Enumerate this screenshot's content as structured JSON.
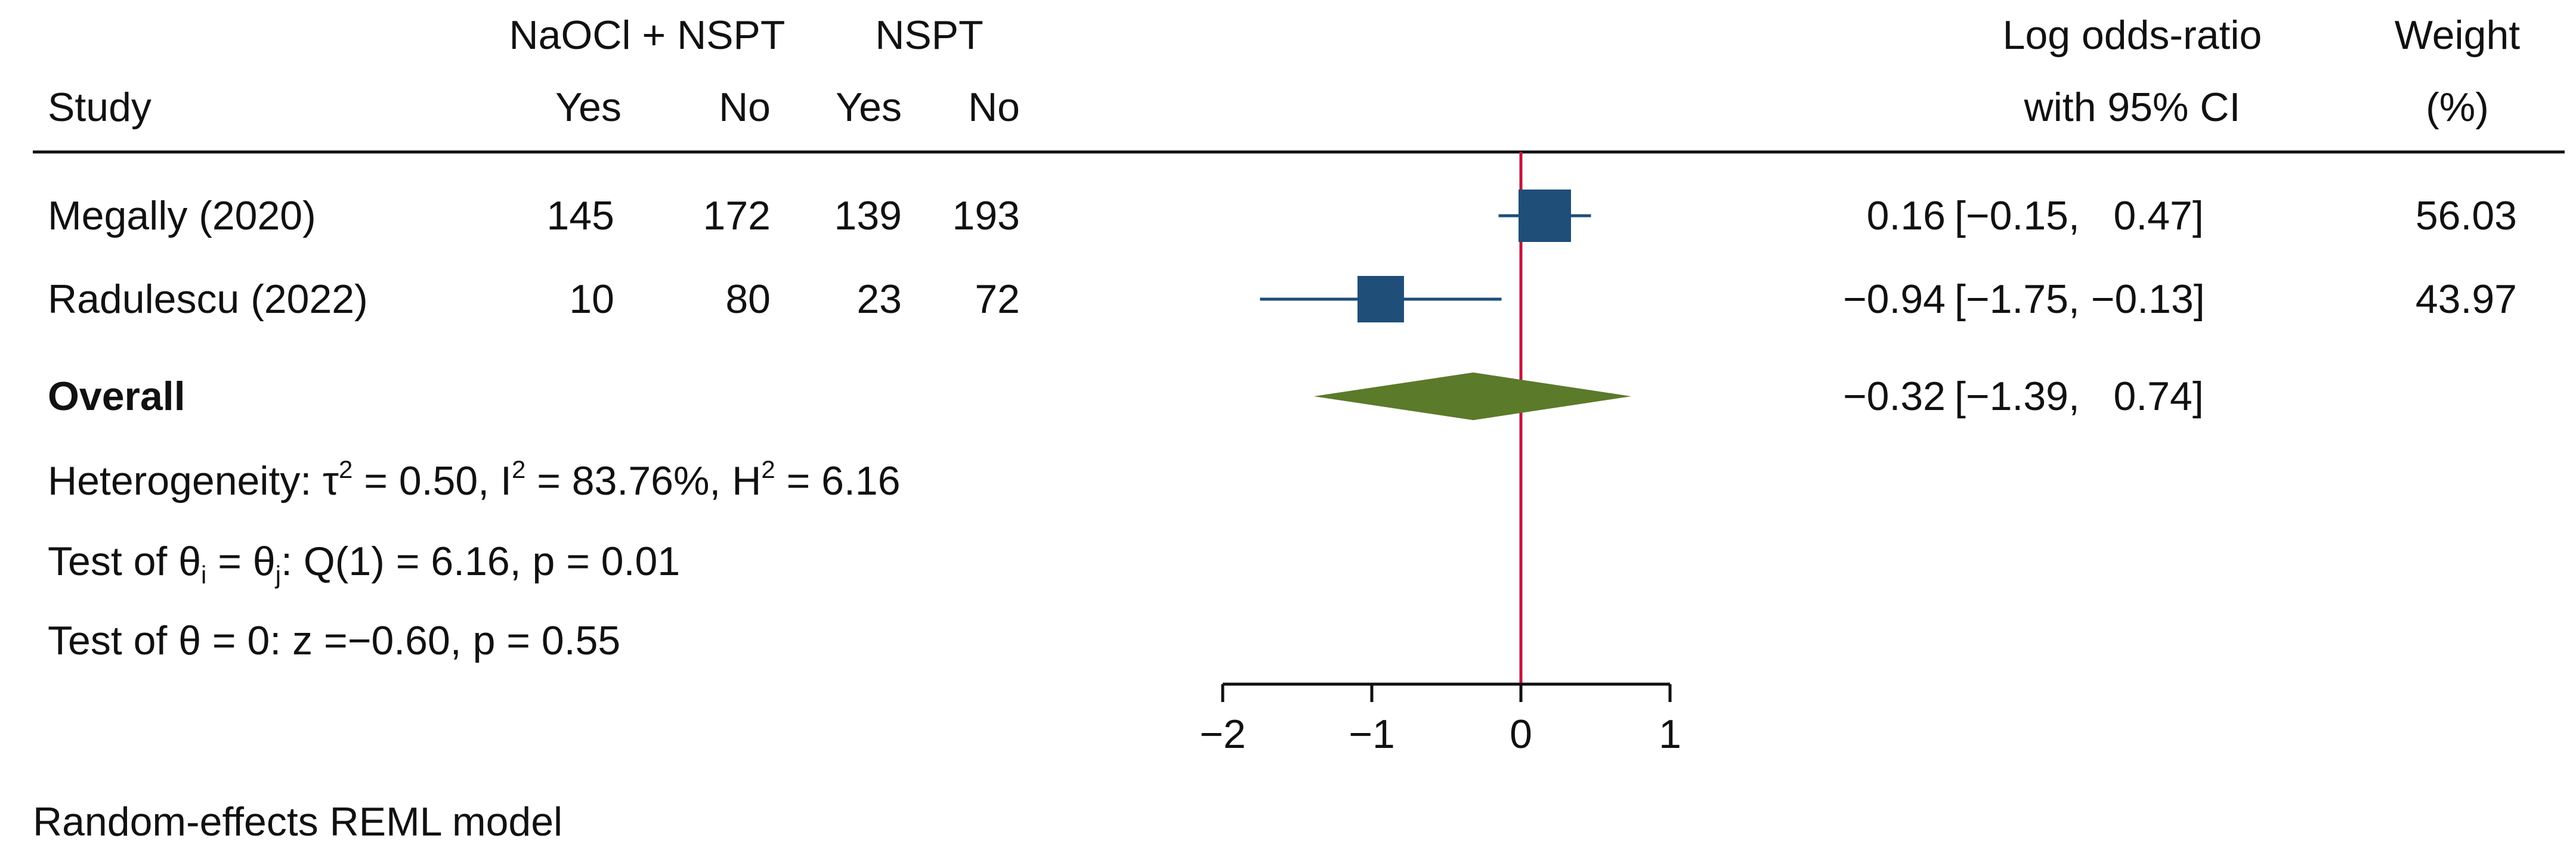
{
  "chart_data": {
    "type": "forest",
    "headers": {
      "group1": "NaOCl + NSPT",
      "group2": "NSPT",
      "study": "Study",
      "yes1": "Yes",
      "no1": "No",
      "yes2": "Yes",
      "no2": "No",
      "effect_line1": "Log odds-ratio",
      "effect_line2": "with 95% CI",
      "weight_line1": "Weight",
      "weight_line2": "(%)"
    },
    "studies": [
      {
        "name": "Megally (2020)",
        "yes1": "145",
        "no1": "172",
        "yes2": "139",
        "no2": "193",
        "estimate": 0.16,
        "lower": -0.15,
        "upper": 0.47,
        "estimate_text": "0.16",
        "ci_text": "[−0.15,   0.47]",
        "weight_text": "56.03",
        "weight": 56.03
      },
      {
        "name": "Radulescu (2022)",
        "yes1": "10",
        "no1": "80",
        "yes2": "23",
        "no2": "72",
        "estimate": -0.94,
        "lower": -1.75,
        "upper": -0.13,
        "estimate_text": "−0.94",
        "ci_text": "[−1.75, −0.13]",
        "weight_text": "43.97",
        "weight": 43.97
      }
    ],
    "overall": {
      "label": "Overall",
      "estimate": -0.32,
      "lower": -1.39,
      "upper": 0.74,
      "estimate_text": "−0.32",
      "ci_text": "[−1.39,   0.74]"
    },
    "heterogeneity": {
      "prefix": "Heterogeneity: ",
      "tau_sym": "τ",
      "tau_val": " = 0.50, I",
      "i_val": " = 83.76%, H",
      "h_val": " = 6.16",
      "sup": "2"
    },
    "test_equal": {
      "prefix": "Test of ",
      "theta": "θ",
      "sub_i": "i",
      "sub_j": "j",
      "eq": " = ",
      "rest": ": Q(1) = 6.16, p = 0.01"
    },
    "test_zero": "Test of θ = 0: z =−0.60, p = 0.55",
    "x_ticks": [
      {
        "value": -2,
        "label": "−2"
      },
      {
        "value": -1,
        "label": "−1"
      },
      {
        "value": 0,
        "label": "0"
      },
      {
        "value": 1,
        "label": "1"
      }
    ],
    "xlim": [
      -2,
      1
    ],
    "null_line": 0,
    "model_note": "Random-effects REML model",
    "colors": {
      "study_marker": "#1f4e79",
      "overall_diamond": "#5b7a2a",
      "null_line": "#c0143c",
      "text": "#111111"
    }
  }
}
